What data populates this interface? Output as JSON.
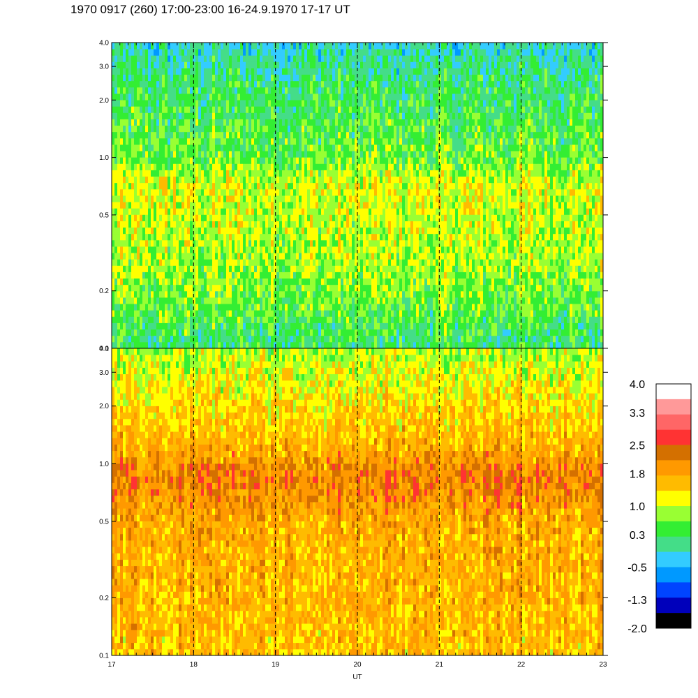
{
  "title": "1970 0917 (260) 17:00-23:00 16-24.9.1970  17-17 UT",
  "chart_data": [
    {
      "type": "heatmap",
      "panel": "top",
      "y_scale": "log",
      "ylim": [
        0.1,
        4.0
      ],
      "y_ticks": [
        0.1,
        0.2,
        0.5,
        1.0,
        2.0,
        3.0,
        4.0
      ],
      "y_tick_labels": [
        "0.1",
        "0.2",
        "0.5",
        "1.0",
        "2.0",
        "3.0",
        "4.0"
      ],
      "xlim": [
        17,
        23
      ],
      "x_ticks": [
        17,
        18,
        19,
        20,
        21,
        22,
        23
      ],
      "dashed_hours": [
        18,
        19,
        20,
        21,
        22
      ],
      "profile": [
        {
          "y": 0.1,
          "level": 0.2
        },
        {
          "y": 0.2,
          "level": 0.7
        },
        {
          "y": 0.35,
          "level": 0.9
        },
        {
          "y": 0.7,
          "level": 1.1
        },
        {
          "y": 1.0,
          "level": 0.6
        },
        {
          "y": 2.0,
          "level": 0.35
        },
        {
          "y": 4.0,
          "level": -0.1
        }
      ]
    },
    {
      "type": "heatmap",
      "panel": "bottom",
      "y_scale": "log",
      "ylim": [
        0.1,
        4.0
      ],
      "y_ticks": [
        0.1,
        0.2,
        0.5,
        1.0,
        2.0,
        3.0,
        4.0
      ],
      "y_tick_labels": [
        "0.1",
        "0.2",
        "0.5",
        "1.0",
        "2.0",
        "3.0",
        "4.0"
      ],
      "xlim": [
        17,
        23
      ],
      "x_ticks": [
        17,
        18,
        19,
        20,
        21,
        22,
        23
      ],
      "x_tick_labels": [
        "17",
        "18",
        "19",
        "20",
        "21",
        "22",
        "23"
      ],
      "xlabel": "UT",
      "dashed_hours": [
        18,
        19,
        20,
        21,
        22
      ],
      "profile": [
        {
          "y": 0.1,
          "level": 1.6
        },
        {
          "y": 0.2,
          "level": 1.7
        },
        {
          "y": 0.5,
          "level": 1.8
        },
        {
          "y": 0.85,
          "level": 2.25
        },
        {
          "y": 1.3,
          "level": 1.7
        },
        {
          "y": 2.0,
          "level": 1.4
        },
        {
          "y": 4.0,
          "level": 0.9
        }
      ]
    }
  ],
  "colorbar": {
    "colors": [
      "#ffffff",
      "#ff9999",
      "#ff6666",
      "#ff3333",
      "#d47000",
      "#ff9900",
      "#ffbb00",
      "#ffff00",
      "#99ff33",
      "#33ee33",
      "#44dd88",
      "#33ccff",
      "#0099ff",
      "#0044ff",
      "#0000bb",
      "#000000"
    ],
    "bounds": [
      4.0,
      3.6,
      3.3,
      2.9,
      2.5,
      2.2,
      1.8,
      1.4,
      1.0,
      0.65,
      0.3,
      -0.1,
      -0.5,
      -0.9,
      -1.3,
      -1.65,
      -2.0
    ],
    "labels": [
      "4.0",
      "3.3",
      "2.5",
      "1.8",
      "1.0",
      "0.3",
      "-0.5",
      "-1.3",
      "-2.0"
    ]
  }
}
